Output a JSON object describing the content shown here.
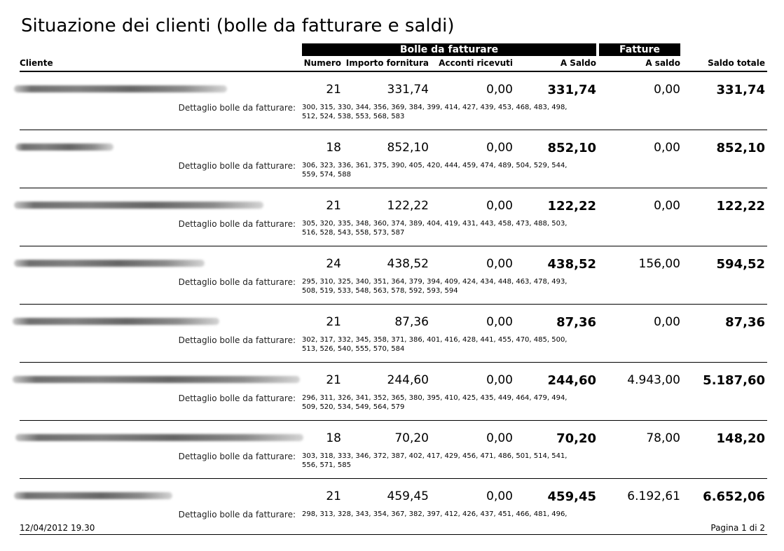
{
  "title": "Situazione dei clienti (bolle da fatturare e saldi)",
  "groups": {
    "bolle": "Bolle da fatturare",
    "fatture": "Fatture"
  },
  "columns": {
    "cliente": "Cliente",
    "numero": "Numero",
    "importo": "Importo fornitura",
    "acconti": "Acconti ricevuti",
    "a_saldo": "A Saldo",
    "f_a_saldo": "A saldo",
    "saldo_totale": "Saldo totale"
  },
  "detail_label": "Dettaglio bolle da fatturare:",
  "rows": [
    {
      "numero": "21",
      "importo": "331,74",
      "acconti": "0,00",
      "a_saldo": "331,74",
      "f_saldo": "0,00",
      "totale": "331,74",
      "dettaglio": "300, 315, 330, 344, 356, 369, 384, 399, 414, 427, 439, 453, 468, 483, 498, 512, 524, 538, 553, 568, 583"
    },
    {
      "numero": "18",
      "importo": "852,10",
      "acconti": "0,00",
      "a_saldo": "852,10",
      "f_saldo": "0,00",
      "totale": "852,10",
      "dettaglio": "306, 323, 336, 361, 375, 390, 405, 420, 444, 459, 474, 489, 504, 529, 544, 559, 574, 588"
    },
    {
      "numero": "21",
      "importo": "122,22",
      "acconti": "0,00",
      "a_saldo": "122,22",
      "f_saldo": "0,00",
      "totale": "122,22",
      "dettaglio": "305, 320, 335, 348, 360, 374, 389, 404, 419, 431, 443, 458, 473, 488, 503, 516, 528, 543, 558, 573, 587"
    },
    {
      "numero": "24",
      "importo": "438,52",
      "acconti": "0,00",
      "a_saldo": "438,52",
      "f_saldo": "156,00",
      "totale": "594,52",
      "dettaglio": "295, 310, 325, 340, 351, 364, 379, 394, 409, 424, 434, 448, 463, 478, 493, 508, 519, 533, 548, 563, 578, 592, 593, 594"
    },
    {
      "numero": "21",
      "importo": "87,36",
      "acconti": "0,00",
      "a_saldo": "87,36",
      "f_saldo": "0,00",
      "totale": "87,36",
      "dettaglio": "302, 317, 332, 345, 358, 371, 386, 401, 416, 428, 441, 455, 470, 485, 500, 513, 526, 540, 555, 570, 584"
    },
    {
      "numero": "21",
      "importo": "244,60",
      "acconti": "0,00",
      "a_saldo": "244,60",
      "f_saldo": "4.943,00",
      "totale": "5.187,60",
      "dettaglio": "296, 311, 326, 341, 352, 365, 380, 395, 410, 425, 435, 449, 464, 479, 494, 509, 520, 534, 549, 564, 579"
    },
    {
      "numero": "18",
      "importo": "70,20",
      "acconti": "0,00",
      "a_saldo": "70,20",
      "f_saldo": "78,00",
      "totale": "148,20",
      "dettaglio": "303, 318, 333, 346, 372, 387, 402, 417, 429, 456, 471, 486, 501, 514, 541, 556, 571, 585"
    },
    {
      "numero": "21",
      "importo": "459,45",
      "acconti": "0,00",
      "a_saldo": "459,45",
      "f_saldo": "6.192,61",
      "totale": "6.652,06",
      "dettaglio": "298, 313, 328, 343, 354, 367, 382, 397, 412, 426, 437, 451, 466, 481, 496,"
    }
  ],
  "footer": {
    "datetime": "12/04/2012 19.30",
    "page": "Pagina 1 di 2"
  }
}
